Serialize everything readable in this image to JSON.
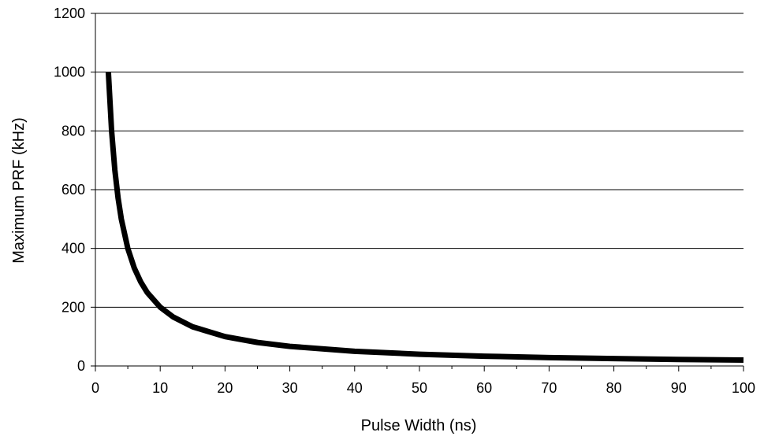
{
  "chart_data": {
    "type": "line",
    "xlabel": "Pulse Width (ns)",
    "ylabel": "Maximum PRF (kHz)",
    "xlim": [
      0,
      100
    ],
    "ylim": [
      0,
      1200
    ],
    "x_ticks": [
      0,
      10,
      20,
      30,
      40,
      50,
      60,
      70,
      80,
      90,
      100
    ],
    "y_ticks": [
      0,
      200,
      400,
      600,
      800,
      1000,
      1200
    ],
    "x_minor_step": 5,
    "grid": "horizontal",
    "legend": "none",
    "series": [
      {
        "color": "#000000",
        "x": [
          2,
          2.5,
          3,
          3.5,
          4,
          5,
          6,
          7,
          8,
          10,
          12,
          15,
          20,
          25,
          30,
          40,
          50,
          60,
          70,
          80,
          90,
          100
        ],
        "y": [
          1000,
          800,
          666.7,
          571.4,
          500,
          400,
          333.3,
          285.7,
          250,
          200,
          166.7,
          133.3,
          100,
          80,
          66.7,
          50,
          40,
          33.3,
          28.6,
          25,
          22.2,
          20
        ]
      }
    ]
  }
}
